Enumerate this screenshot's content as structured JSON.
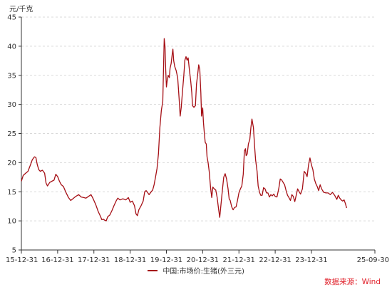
{
  "chart_data": {
    "type": "line",
    "y_unit": "元/千克",
    "ylim": [
      5,
      45
    ],
    "y_ticks": [
      5,
      10,
      15,
      20,
      25,
      30,
      35,
      40,
      45
    ],
    "y_tick_labels": [
      "5",
      "10",
      "15",
      "20",
      "25",
      "30",
      "35",
      "40",
      "45"
    ],
    "x_tick_labels": [
      "15-12-31",
      "16-12-31",
      "17-12-31",
      "18-12-31",
      "19-12-31",
      "20-12-31",
      "21-12-31",
      "22-12-31",
      "23-12-31",
      "25-09-30"
    ],
    "x_tick_years": [
      0,
      1,
      2,
      3,
      4,
      5,
      6,
      7,
      8,
      9.75
    ],
    "xlim_years": [
      0,
      9.75
    ],
    "grid": true,
    "legend_position": "bottom-center",
    "series": [
      {
        "name": "中国:市场价:生猪(外三元)",
        "color": "#a50f15",
        "points": [
          [
            0.0,
            16.8
          ],
          [
            0.05,
            17.8
          ],
          [
            0.12,
            18.2
          ],
          [
            0.18,
            18.5
          ],
          [
            0.25,
            19.6
          ],
          [
            0.3,
            20.5
          ],
          [
            0.36,
            21.0
          ],
          [
            0.4,
            20.9
          ],
          [
            0.44,
            19.6
          ],
          [
            0.48,
            18.8
          ],
          [
            0.52,
            18.5
          ],
          [
            0.58,
            18.7
          ],
          [
            0.64,
            18.2
          ],
          [
            0.68,
            16.5
          ],
          [
            0.72,
            16.0
          ],
          [
            0.78,
            16.6
          ],
          [
            0.84,
            16.8
          ],
          [
            0.9,
            17.0
          ],
          [
            0.95,
            18.0
          ],
          [
            1.0,
            17.6
          ],
          [
            1.05,
            16.8
          ],
          [
            1.1,
            16.2
          ],
          [
            1.16,
            15.9
          ],
          [
            1.22,
            15.0
          ],
          [
            1.3,
            14.0
          ],
          [
            1.36,
            13.5
          ],
          [
            1.42,
            13.8
          ],
          [
            1.5,
            14.2
          ],
          [
            1.58,
            14.5
          ],
          [
            1.65,
            14.1
          ],
          [
            1.72,
            14.0
          ],
          [
            1.78,
            13.9
          ],
          [
            1.85,
            14.2
          ],
          [
            1.92,
            14.5
          ],
          [
            1.98,
            13.8
          ],
          [
            2.05,
            12.8
          ],
          [
            2.12,
            11.6
          ],
          [
            2.18,
            10.8
          ],
          [
            2.22,
            10.2
          ],
          [
            2.26,
            10.3
          ],
          [
            2.3,
            10.1
          ],
          [
            2.34,
            10.0
          ],
          [
            2.38,
            10.7
          ],
          [
            2.44,
            11.0
          ],
          [
            2.5,
            11.8
          ],
          [
            2.56,
            12.7
          ],
          [
            2.62,
            13.5
          ],
          [
            2.66,
            13.9
          ],
          [
            2.72,
            13.6
          ],
          [
            2.8,
            13.8
          ],
          [
            2.88,
            13.6
          ],
          [
            2.95,
            14.0
          ],
          [
            3.0,
            13.2
          ],
          [
            3.06,
            13.4
          ],
          [
            3.12,
            12.6
          ],
          [
            3.16,
            11.2
          ],
          [
            3.2,
            10.9
          ],
          [
            3.24,
            11.9
          ],
          [
            3.3,
            12.6
          ],
          [
            3.36,
            13.4
          ],
          [
            3.4,
            15.0
          ],
          [
            3.44,
            15.2
          ],
          [
            3.48,
            14.9
          ],
          [
            3.52,
            14.5
          ],
          [
            3.58,
            15.0
          ],
          [
            3.62,
            15.3
          ],
          [
            3.66,
            16.2
          ],
          [
            3.7,
            17.5
          ],
          [
            3.74,
            19.0
          ],
          [
            3.78,
            21.5
          ],
          [
            3.82,
            26.0
          ],
          [
            3.86,
            29.0
          ],
          [
            3.9,
            30.5
          ],
          [
            3.92,
            36.0
          ],
          [
            3.94,
            41.3
          ],
          [
            3.96,
            40.0
          ],
          [
            3.98,
            36.0
          ],
          [
            4.0,
            33.0
          ],
          [
            4.02,
            34.0
          ],
          [
            4.05,
            35.0
          ],
          [
            4.08,
            34.6
          ],
          [
            4.1,
            36.2
          ],
          [
            4.13,
            37.0
          ],
          [
            4.16,
            38.6
          ],
          [
            4.18,
            39.5
          ],
          [
            4.2,
            37.5
          ],
          [
            4.23,
            36.5
          ],
          [
            4.27,
            35.8
          ],
          [
            4.31,
            34.6
          ],
          [
            4.35,
            31.0
          ],
          [
            4.38,
            28.0
          ],
          [
            4.41,
            29.5
          ],
          [
            4.44,
            32.0
          ],
          [
            4.48,
            35.0
          ],
          [
            4.51,
            37.6
          ],
          [
            4.54,
            38.2
          ],
          [
            4.57,
            37.6
          ],
          [
            4.6,
            38.0
          ],
          [
            4.63,
            36.2
          ],
          [
            4.67,
            34.0
          ],
          [
            4.7,
            32.0
          ],
          [
            4.72,
            29.8
          ],
          [
            4.76,
            29.5
          ],
          [
            4.8,
            29.8
          ],
          [
            4.83,
            33.5
          ],
          [
            4.86,
            35.0
          ],
          [
            4.89,
            36.8
          ],
          [
            4.92,
            36.0
          ],
          [
            4.95,
            32.0
          ],
          [
            4.97,
            28.0
          ],
          [
            5.0,
            29.4
          ],
          [
            5.02,
            27.0
          ],
          [
            5.04,
            25.5
          ],
          [
            5.07,
            23.5
          ],
          [
            5.1,
            23.2
          ],
          [
            5.12,
            21.0
          ],
          [
            5.15,
            20.0
          ],
          [
            5.18,
            18.5
          ],
          [
            5.22,
            15.5
          ],
          [
            5.25,
            14.0
          ],
          [
            5.28,
            15.8
          ],
          [
            5.32,
            15.5
          ],
          [
            5.36,
            15.3
          ],
          [
            5.4,
            14.0
          ],
          [
            5.44,
            12.0
          ],
          [
            5.47,
            10.6
          ],
          [
            5.5,
            12.5
          ],
          [
            5.54,
            15.0
          ],
          [
            5.58,
            17.5
          ],
          [
            5.62,
            18.1
          ],
          [
            5.66,
            17.2
          ],
          [
            5.7,
            15.5
          ],
          [
            5.73,
            13.8
          ],
          [
            5.76,
            13.5
          ],
          [
            5.8,
            12.4
          ],
          [
            5.84,
            11.9
          ],
          [
            5.88,
            12.3
          ],
          [
            5.92,
            12.4
          ],
          [
            5.96,
            13.5
          ],
          [
            6.0,
            14.8
          ],
          [
            6.04,
            15.5
          ],
          [
            6.08,
            16.0
          ],
          [
            6.12,
            18.0
          ],
          [
            6.15,
            22.0
          ],
          [
            6.18,
            22.4
          ],
          [
            6.2,
            21.2
          ],
          [
            6.23,
            21.5
          ],
          [
            6.26,
            23.2
          ],
          [
            6.3,
            24.0
          ],
          [
            6.33,
            26.0
          ],
          [
            6.36,
            27.5
          ],
          [
            6.4,
            26.0
          ],
          [
            6.43,
            23.0
          ],
          [
            6.46,
            20.5
          ],
          [
            6.5,
            18.5
          ],
          [
            6.53,
            16.0
          ],
          [
            6.57,
            14.9
          ],
          [
            6.6,
            14.4
          ],
          [
            6.64,
            14.4
          ],
          [
            6.68,
            15.7
          ],
          [
            6.72,
            15.5
          ],
          [
            6.76,
            14.8
          ],
          [
            6.8,
            14.8
          ],
          [
            6.84,
            14.1
          ],
          [
            6.88,
            14.5
          ],
          [
            6.92,
            14.3
          ],
          [
            6.96,
            14.6
          ],
          [
            7.0,
            14.2
          ],
          [
            7.05,
            14.1
          ],
          [
            7.1,
            15.6
          ],
          [
            7.14,
            17.2
          ],
          [
            7.18,
            17.0
          ],
          [
            7.22,
            16.6
          ],
          [
            7.26,
            16.2
          ],
          [
            7.3,
            15.2
          ],
          [
            7.34,
            14.4
          ],
          [
            7.38,
            14.0
          ],
          [
            7.42,
            13.5
          ],
          [
            7.46,
            14.5
          ],
          [
            7.5,
            14.2
          ],
          [
            7.54,
            13.3
          ],
          [
            7.58,
            14.4
          ],
          [
            7.62,
            15.5
          ],
          [
            7.66,
            15.0
          ],
          [
            7.7,
            14.6
          ],
          [
            7.75,
            15.5
          ],
          [
            7.8,
            18.5
          ],
          [
            7.84,
            18.2
          ],
          [
            7.88,
            17.6
          ],
          [
            7.92,
            19.6
          ],
          [
            7.96,
            20.8
          ],
          [
            8.0,
            19.6
          ],
          [
            8.04,
            18.8
          ],
          [
            8.08,
            17.2
          ],
          [
            8.12,
            16.4
          ],
          [
            8.16,
            15.9
          ],
          [
            8.2,
            15.2
          ],
          [
            8.24,
            16.2
          ],
          [
            8.28,
            15.5
          ],
          [
            8.34,
            14.9
          ],
          [
            8.4,
            14.8
          ],
          [
            8.46,
            14.8
          ],
          [
            8.52,
            14.5
          ],
          [
            8.58,
            14.9
          ],
          [
            8.64,
            14.4
          ],
          [
            8.7,
            13.7
          ],
          [
            8.74,
            14.4
          ],
          [
            8.78,
            13.9
          ],
          [
            8.82,
            13.6
          ],
          [
            8.86,
            13.4
          ],
          [
            8.9,
            13.6
          ],
          [
            8.94,
            12.9
          ],
          [
            8.97,
            12.2
          ]
        ]
      }
    ]
  },
  "legend": {
    "label": "中国:市场价:生猪(外三元)"
  },
  "source_text": "数据来源：Wind",
  "colors": {
    "series": "#a50f15",
    "source": "#e0202a",
    "axis": "#333333",
    "grid": "#d9d9d9"
  }
}
